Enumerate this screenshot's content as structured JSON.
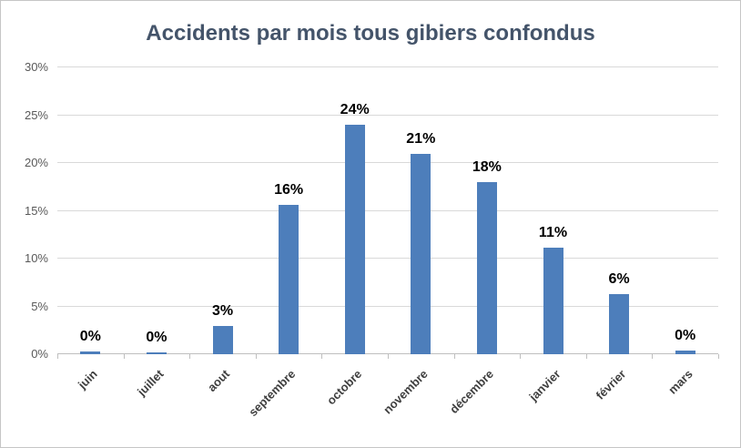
{
  "chart_data": {
    "type": "bar",
    "title": "Accidents par mois tous gibiers confondus",
    "categories": [
      "juin",
      "juillet",
      "aout",
      "septembre",
      "octobre",
      "novembre",
      "décembre",
      "janvier",
      "février",
      "mars"
    ],
    "values": [
      0.3,
      0.2,
      3,
      15.6,
      24,
      21,
      18,
      11.1,
      6.3,
      0.4
    ],
    "data_labels": [
      "0%",
      "0%",
      "3%",
      "16%",
      "24%",
      "21%",
      "18%",
      "11%",
      "6%",
      "0%"
    ],
    "y_ticks": [
      "0%",
      "5%",
      "10%",
      "15%",
      "20%",
      "25%",
      "30%"
    ],
    "ylim": [
      0,
      30
    ],
    "xlabel": "",
    "ylabel": "",
    "grid": true,
    "legend": false,
    "bar_color": "#4d7ebb",
    "title_color": "#44546a",
    "gridline_color": "#d9d9d9",
    "axis_color": "#bfbfbf"
  }
}
